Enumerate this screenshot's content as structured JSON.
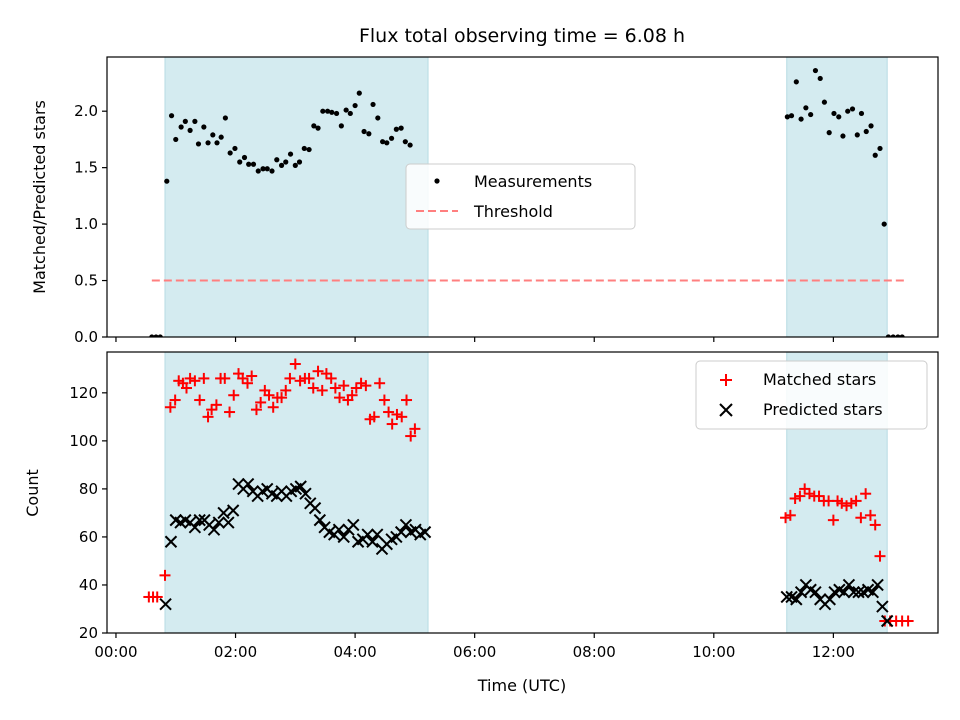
{
  "chart_data": [
    {
      "type": "scatter",
      "title": "Flux total observing time = 6.08 h",
      "xlabel": "",
      "ylabel": "Matched/Predicted stars",
      "xlim": [
        -0.15,
        13.75
      ],
      "ylim": [
        0,
        2.48
      ],
      "yticks": [
        0.0,
        0.5,
        1.0,
        1.5,
        2.0
      ],
      "ytick_labels": [
        "0.0",
        "0.5",
        "1.0",
        "1.5",
        "2.0"
      ],
      "shaded_intervals": [
        [
          0.82,
          5.22
        ],
        [
          11.22,
          12.9
        ]
      ],
      "shade_color": "#d4ebf0",
      "threshold": {
        "name": "Threshold",
        "value": 0.5,
        "x_range": [
          0.6,
          13.2
        ],
        "color": "#ff7f7f"
      },
      "legend": {
        "position": "center",
        "entries": [
          "Measurements",
          "Threshold"
        ]
      },
      "series": [
        {
          "name": "Measurements",
          "marker": "dot",
          "color": "#000000",
          "points": [
            [
              0.6,
              0
            ],
            [
              0.67,
              0
            ],
            [
              0.74,
              0
            ],
            [
              0.85,
              1.38
            ],
            [
              0.93,
              1.96
            ],
            [
              1.0,
              1.75
            ],
            [
              1.09,
              1.86
            ],
            [
              1.16,
              1.91
            ],
            [
              1.24,
              1.83
            ],
            [
              1.32,
              1.91
            ],
            [
              1.38,
              1.71
            ],
            [
              1.47,
              1.86
            ],
            [
              1.54,
              1.72
            ],
            [
              1.62,
              1.79
            ],
            [
              1.69,
              1.72
            ],
            [
              1.76,
              1.77
            ],
            [
              1.83,
              1.94
            ],
            [
              1.91,
              1.63
            ],
            [
              1.99,
              1.67
            ],
            [
              2.07,
              1.55
            ],
            [
              2.15,
              1.59
            ],
            [
              2.22,
              1.53
            ],
            [
              2.3,
              1.53
            ],
            [
              2.38,
              1.47
            ],
            [
              2.46,
              1.49
            ],
            [
              2.53,
              1.49
            ],
            [
              2.61,
              1.47
            ],
            [
              2.69,
              1.57
            ],
            [
              2.77,
              1.52
            ],
            [
              2.84,
              1.55
            ],
            [
              2.92,
              1.62
            ],
            [
              3.0,
              1.52
            ],
            [
              3.07,
              1.55
            ],
            [
              3.15,
              1.67
            ],
            [
              3.23,
              1.66
            ],
            [
              3.31,
              1.87
            ],
            [
              3.38,
              1.85
            ],
            [
              3.46,
              2.0
            ],
            [
              3.54,
              2.0
            ],
            [
              3.61,
              1.99
            ],
            [
              3.69,
              1.98
            ],
            [
              3.77,
              1.87
            ],
            [
              3.85,
              2.01
            ],
            [
              3.92,
              1.98
            ],
            [
              4.0,
              2.05
            ],
            [
              4.07,
              2.16
            ],
            [
              4.15,
              1.82
            ],
            [
              4.23,
              1.8
            ],
            [
              4.3,
              2.06
            ],
            [
              4.38,
              1.94
            ],
            [
              4.46,
              1.73
            ],
            [
              4.53,
              1.72
            ],
            [
              4.61,
              1.76
            ],
            [
              4.69,
              1.84
            ],
            [
              4.77,
              1.85
            ],
            [
              4.84,
              1.73
            ],
            [
              4.92,
              1.7
            ],
            [
              11.23,
              1.95
            ],
            [
              11.3,
              1.96
            ],
            [
              11.38,
              2.26
            ],
            [
              11.46,
              1.93
            ],
            [
              11.54,
              2.03
            ],
            [
              11.62,
              1.97
            ],
            [
              11.7,
              2.36
            ],
            [
              11.78,
              2.29
            ],
            [
              11.85,
              2.08
            ],
            [
              11.93,
              1.81
            ],
            [
              12.01,
              1.98
            ],
            [
              12.09,
              1.95
            ],
            [
              12.16,
              1.78
            ],
            [
              12.24,
              2.0
            ],
            [
              12.32,
              2.02
            ],
            [
              12.4,
              1.79
            ],
            [
              12.47,
              1.98
            ],
            [
              12.55,
              1.82
            ],
            [
              12.63,
              1.87
            ],
            [
              12.7,
              1.61
            ],
            [
              12.78,
              1.67
            ],
            [
              12.85,
              1.0
            ],
            [
              12.92,
              0
            ],
            [
              13.0,
              0
            ],
            [
              13.08,
              0
            ],
            [
              13.15,
              0
            ]
          ]
        }
      ]
    },
    {
      "type": "scatter",
      "title": "",
      "xlabel": "Time (UTC)",
      "ylabel": "Count",
      "xlim": [
        -0.15,
        13.75
      ],
      "ylim": [
        20,
        137
      ],
      "xticks": [
        0,
        2,
        4,
        6,
        8,
        10,
        12
      ],
      "xtick_labels": [
        "00:00",
        "02:00",
        "04:00",
        "06:00",
        "08:00",
        "10:00",
        "12:00"
      ],
      "yticks": [
        20,
        40,
        60,
        80,
        100,
        120
      ],
      "ytick_labels": [
        "20",
        "40",
        "60",
        "80",
        "100",
        "120"
      ],
      "shaded_intervals": [
        [
          0.82,
          5.22
        ],
        [
          11.22,
          12.9
        ]
      ],
      "shade_color": "#d4ebf0",
      "legend": {
        "position": "upper right",
        "entries": [
          "Matched stars",
          "Predicted stars"
        ]
      },
      "series": [
        {
          "name": "Matched stars",
          "marker": "plus",
          "color": "#ff0000",
          "points": [
            [
              0.55,
              35
            ],
            [
              0.62,
              35
            ],
            [
              0.69,
              35
            ],
            [
              0.82,
              44
            ],
            [
              0.91,
              114
            ],
            [
              0.99,
              117
            ],
            [
              1.05,
              125
            ],
            [
              1.12,
              124
            ],
            [
              1.18,
              122
            ],
            [
              1.24,
              126
            ],
            [
              1.32,
              125
            ],
            [
              1.4,
              117
            ],
            [
              1.47,
              126
            ],
            [
              1.54,
              110
            ],
            [
              1.6,
              113
            ],
            [
              1.68,
              115
            ],
            [
              1.75,
              126
            ],
            [
              1.82,
              126
            ],
            [
              1.9,
              112
            ],
            [
              1.97,
              119
            ],
            [
              2.05,
              128
            ],
            [
              2.12,
              126
            ],
            [
              2.2,
              124
            ],
            [
              2.27,
              127
            ],
            [
              2.35,
              113
            ],
            [
              2.42,
              116
            ],
            [
              2.49,
              121
            ],
            [
              2.56,
              119
            ],
            [
              2.63,
              114
            ],
            [
              2.7,
              118
            ],
            [
              2.77,
              118
            ],
            [
              2.84,
              121
            ],
            [
              2.91,
              126
            ],
            [
              3.0,
              132
            ],
            [
              3.08,
              125
            ],
            [
              3.16,
              126
            ],
            [
              3.23,
              126
            ],
            [
              3.3,
              122
            ],
            [
              3.38,
              129
            ],
            [
              3.45,
              121
            ],
            [
              3.52,
              128
            ],
            [
              3.6,
              126
            ],
            [
              3.67,
              122
            ],
            [
              3.74,
              118
            ],
            [
              3.81,
              123
            ],
            [
              3.88,
              117
            ],
            [
              3.95,
              119
            ],
            [
              4.02,
              122
            ],
            [
              4.1,
              124
            ],
            [
              4.18,
              123
            ],
            [
              4.25,
              109
            ],
            [
              4.32,
              110
            ],
            [
              4.41,
              124
            ],
            [
              4.49,
              117
            ],
            [
              4.56,
              112
            ],
            [
              4.62,
              107
            ],
            [
              4.7,
              111
            ],
            [
              4.78,
              110
            ],
            [
              4.86,
              117
            ],
            [
              4.93,
              102
            ],
            [
              5.0,
              105
            ],
            [
              11.2,
              68
            ],
            [
              11.28,
              69
            ],
            [
              11.36,
              76
            ],
            [
              11.44,
              77
            ],
            [
              11.52,
              80
            ],
            [
              11.6,
              78
            ],
            [
              11.68,
              77
            ],
            [
              11.76,
              77
            ],
            [
              11.84,
              75
            ],
            [
              11.92,
              75
            ],
            [
              12.0,
              67
            ],
            [
              12.07,
              75
            ],
            [
              12.14,
              74
            ],
            [
              12.22,
              73
            ],
            [
              12.3,
              74
            ],
            [
              12.38,
              75
            ],
            [
              12.46,
              68
            ],
            [
              12.54,
              78
            ],
            [
              12.62,
              69
            ],
            [
              12.7,
              65
            ],
            [
              12.78,
              52
            ],
            [
              12.86,
              25
            ],
            [
              12.95,
              25
            ],
            [
              13.05,
              25
            ],
            [
              13.15,
              25
            ],
            [
              13.25,
              25
            ]
          ]
        },
        {
          "name": "Predicted stars",
          "marker": "x",
          "color": "#000000",
          "points": [
            [
              0.83,
              32
            ],
            [
              0.92,
              58
            ],
            [
              1.0,
              67
            ],
            [
              1.08,
              66
            ],
            [
              1.16,
              67
            ],
            [
              1.24,
              66
            ],
            [
              1.32,
              64
            ],
            [
              1.4,
              67
            ],
            [
              1.48,
              67
            ],
            [
              1.56,
              65
            ],
            [
              1.64,
              63
            ],
            [
              1.72,
              66
            ],
            [
              1.8,
              70
            ],
            [
              1.88,
              66
            ],
            [
              1.96,
              71
            ],
            [
              2.05,
              82
            ],
            [
              2.13,
              80
            ],
            [
              2.21,
              82
            ],
            [
              2.29,
              79
            ],
            [
              2.37,
              77
            ],
            [
              2.45,
              79
            ],
            [
              2.53,
              80
            ],
            [
              2.61,
              78
            ],
            [
              2.69,
              77
            ],
            [
              2.77,
              79
            ],
            [
              2.85,
              77
            ],
            [
              2.93,
              79
            ],
            [
              3.01,
              80
            ],
            [
              3.09,
              81
            ],
            [
              3.17,
              78
            ],
            [
              3.25,
              74
            ],
            [
              3.33,
              72
            ],
            [
              3.41,
              67
            ],
            [
              3.49,
              64
            ],
            [
              3.57,
              62
            ],
            [
              3.65,
              61
            ],
            [
              3.73,
              63
            ],
            [
              3.81,
              60
            ],
            [
              3.89,
              63
            ],
            [
              3.97,
              65
            ],
            [
              4.05,
              58
            ],
            [
              4.13,
              59
            ],
            [
              4.21,
              61
            ],
            [
              4.29,
              58
            ],
            [
              4.37,
              61
            ],
            [
              4.45,
              55
            ],
            [
              4.53,
              57
            ],
            [
              4.61,
              59
            ],
            [
              4.69,
              60
            ],
            [
              4.77,
              62
            ],
            [
              4.85,
              65
            ],
            [
              4.93,
              62
            ],
            [
              5.01,
              63
            ],
            [
              5.09,
              61
            ],
            [
              5.17,
              62
            ],
            [
              11.22,
              35
            ],
            [
              11.3,
              35
            ],
            [
              11.38,
              34
            ],
            [
              11.46,
              37
            ],
            [
              11.54,
              40
            ],
            [
              11.62,
              38
            ],
            [
              11.7,
              37
            ],
            [
              11.78,
              34
            ],
            [
              11.86,
              32
            ],
            [
              11.94,
              34
            ],
            [
              12.02,
              37
            ],
            [
              12.1,
              38
            ],
            [
              12.18,
              37
            ],
            [
              12.26,
              40
            ],
            [
              12.34,
              37
            ],
            [
              12.42,
              37
            ],
            [
              12.5,
              37
            ],
            [
              12.58,
              38
            ],
            [
              12.66,
              37
            ],
            [
              12.74,
              40
            ],
            [
              12.82,
              31
            ],
            [
              12.9,
              25
            ]
          ]
        }
      ]
    }
  ]
}
